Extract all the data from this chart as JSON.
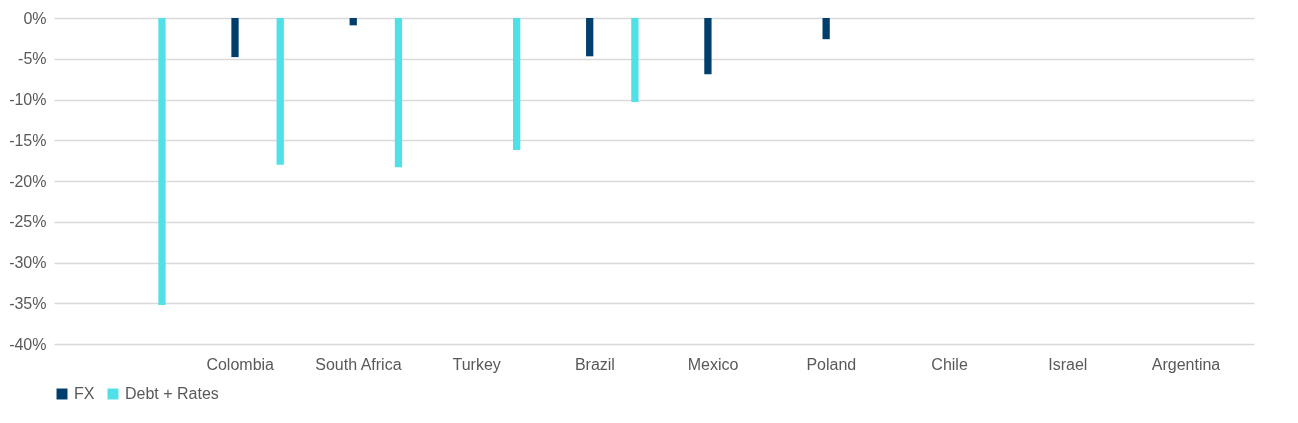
{
  "chart_data": {
    "type": "bar",
    "categories": [
      null,
      "Colombia",
      "South Africa",
      "Turkey",
      "Brazil",
      "Mexico",
      "Poland",
      "Chile",
      "Israel",
      "Argentina"
    ],
    "series": [
      {
        "name": "FX",
        "color": "#003f6b",
        "values": [
          null,
          -4.8,
          -0.9,
          null,
          -4.7,
          -6.9,
          -2.6,
          null,
          null,
          null
        ]
      },
      {
        "name": "Debt + Rates",
        "color": "#50e0e8",
        "values": [
          -35.2,
          -18.0,
          -18.3,
          -16.2,
          -10.3,
          null,
          null,
          null,
          null,
          null
        ]
      }
    ],
    "ylim": [
      -40,
      0
    ],
    "yticks": [
      {
        "value": -40,
        "label": "-40%"
      },
      {
        "value": -35,
        "label": "-35%"
      },
      {
        "value": -30,
        "label": "-30%"
      },
      {
        "value": -25,
        "label": "-25%"
      },
      {
        "value": -20,
        "label": "-20%"
      },
      {
        "value": -15,
        "label": "-15%"
      },
      {
        "value": -10,
        "label": "-10%"
      },
      {
        "value": -5,
        "label": "-5%"
      },
      {
        "value": 0,
        "label": "0%"
      }
    ],
    "grid": "y",
    "legend": "bottom"
  }
}
